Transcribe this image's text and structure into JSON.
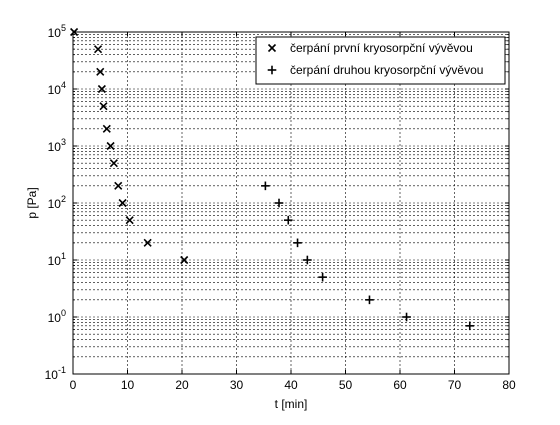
{
  "chart_data": {
    "type": "scatter",
    "xlabel": "t [min]",
    "ylabel": "p [Pa]",
    "xlim": [
      0,
      80
    ],
    "ylim": [
      0.1,
      100000
    ],
    "yscale": "log",
    "grid": true,
    "legend_position": "top-right",
    "x_ticks": [
      "0",
      "10",
      "20",
      "30",
      "40",
      "50",
      "60",
      "70",
      "80"
    ],
    "y_tick_exponents": [
      "-1",
      "0",
      "1",
      "2",
      "3",
      "4",
      "5"
    ],
    "series": [
      {
        "name": "čerpání první kryosorpční vývěvou",
        "marker": "x",
        "color": "#000000",
        "points": [
          {
            "x": 0.2,
            "y": 100000
          },
          {
            "x": 4.6,
            "y": 50000
          },
          {
            "x": 5.0,
            "y": 20000
          },
          {
            "x": 5.3,
            "y": 10000
          },
          {
            "x": 5.6,
            "y": 5000
          },
          {
            "x": 6.2,
            "y": 2000
          },
          {
            "x": 6.9,
            "y": 1000
          },
          {
            "x": 7.5,
            "y": 500
          },
          {
            "x": 8.3,
            "y": 200
          },
          {
            "x": 9.1,
            "y": 100
          },
          {
            "x": 10.4,
            "y": 50
          },
          {
            "x": 13.7,
            "y": 20
          },
          {
            "x": 20.4,
            "y": 10
          }
        ]
      },
      {
        "name": "čerpání druhou kryosorpční vývěvou",
        "marker": "+",
        "color": "#000000",
        "points": [
          {
            "x": 35.3,
            "y": 200
          },
          {
            "x": 37.8,
            "y": 100
          },
          {
            "x": 39.5,
            "y": 50
          },
          {
            "x": 41.2,
            "y": 20
          },
          {
            "x": 43.0,
            "y": 10
          },
          {
            "x": 45.8,
            "y": 5
          },
          {
            "x": 54.4,
            "y": 2
          },
          {
            "x": 61.2,
            "y": 1
          },
          {
            "x": 72.8,
            "y": 0.7
          }
        ]
      }
    ]
  }
}
